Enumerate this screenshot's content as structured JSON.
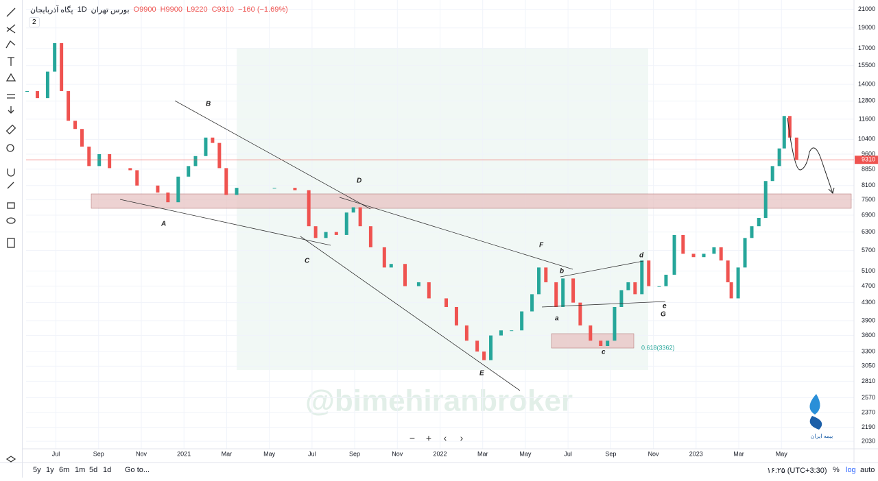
{
  "header": {
    "symbol": "پگاه آذربایجان",
    "interval": "1D",
    "exchange": "بورس تهران",
    "open": "O9900",
    "high": "H9900",
    "low": "L9220",
    "close": "C9310",
    "change": "−160 (−1.69%)",
    "badge": "2"
  },
  "chart_data": {
    "type": "candlestick",
    "log_scale": true,
    "grid": true,
    "up_color": "#26a69a",
    "down_color": "#ef5350",
    "x": [
      -1.35,
      -0.87,
      -0.39,
      -0.06,
      0.26,
      0.58,
      0.9,
      1.22,
      1.55,
      2.03,
      2.51,
      3.48,
      3.8,
      4.77,
      5.25,
      5.73,
      6.21,
      6.54,
      7.02,
      7.34,
      7.66,
      7.98,
      8.47,
      10.24,
      11.2,
      11.85,
      12.17,
      12.65,
      13.14,
      13.62,
      13.94,
      14.26,
      14.75,
      15.39,
      15.71,
      16.36,
      17.0,
      17.48,
      18.29,
      18.77,
      19.25,
      19.74,
      20.06,
      20.38,
      20.86,
      21.35,
      21.83,
      22.31,
      22.63,
      22.96,
      23.44,
      23.76,
      24.24,
      24.57,
      25.05,
      25.53,
      25.85,
      26.18,
      26.5,
      26.82,
      27.14,
      27.46,
      27.78,
      28.27,
      28.59,
      28.98,
      29.39,
      29.88,
      30.36,
      30.84,
      31.17,
      31.49,
      31.65,
      31.97,
      32.29,
      32.61,
      32.94,
      33.26,
      33.58,
      33.9,
      34.13,
      34.39,
      34.71
    ],
    "values": [
      13500,
      13000,
      15000,
      17500,
      13500,
      11500,
      11000,
      10000,
      9000,
      9600,
      8900,
      8800,
      8100,
      7800,
      7400,
      8500,
      9000,
      9500,
      10500,
      10200,
      8900,
      7700,
      8000,
      8000,
      7900,
      6500,
      6100,
      6300,
      6200,
      7000,
      7200,
      6500,
      5800,
      5200,
      5300,
      4700,
      4800,
      4400,
      4200,
      3800,
      3500,
      3300,
      3150,
      3600,
      3700,
      3700,
      4100,
      4500,
      5200,
      4800,
      4200,
      4900,
      4300,
      3800,
      3500,
      3400,
      3500,
      4200,
      4600,
      4800,
      4500,
      5400,
      4700,
      4700,
      5000,
      6200,
      5600,
      5500,
      5600,
      5800,
      5400,
      4800,
      4400,
      5200,
      6100,
      6500,
      6800,
      8300,
      9000,
      9900,
      11800,
      10500,
      9300
    ],
    "last_price": 9310,
    "xlim": [
      -1.4,
      37.4
    ],
    "ylim": [
      1950,
      22100
    ],
    "xticks": [
      {
        "value": 0,
        "label": "Jul"
      },
      {
        "value": 2,
        "label": "Sep"
      },
      {
        "value": 4,
        "label": "Nov"
      },
      {
        "value": 6,
        "label": "2021"
      },
      {
        "value": 8,
        "label": "Mar"
      },
      {
        "value": 10,
        "label": "May"
      },
      {
        "value": 12,
        "label": "Jul"
      },
      {
        "value": 14,
        "label": "Sep"
      },
      {
        "value": 16,
        "label": "Nov"
      },
      {
        "value": 18,
        "label": "2022"
      },
      {
        "value": 20,
        "label": "Mar"
      },
      {
        "value": 22,
        "label": "May"
      },
      {
        "value": 24,
        "label": "Jul"
      },
      {
        "value": 26,
        "label": "Sep"
      },
      {
        "value": 28,
        "label": "Nov"
      },
      {
        "value": 30,
        "label": "2023"
      },
      {
        "value": 32,
        "label": "Mar"
      },
      {
        "value": 34,
        "label": "May"
      }
    ],
    "yticks": [
      2030,
      2190,
      2370,
      2570,
      2810,
      3050,
      3300,
      3600,
      3900,
      4300,
      4700,
      5100,
      5700,
      6300,
      6900,
      7500,
      8100,
      8850,
      9600,
      10400,
      11600,
      12800,
      14000,
      15500,
      17000,
      19000,
      21000
    ]
  },
  "annotations": {
    "labels": [
      "B",
      "D",
      "A",
      "C",
      "F",
      "b",
      "d",
      "a",
      "e",
      "G",
      "c",
      "E"
    ],
    "fib": "0.618(3362)",
    "watermark": "@bimehiranbroker",
    "logo": "بیمه ایران"
  },
  "navigation": [
    "−",
    "+",
    "‹",
    "›"
  ],
  "footer": {
    "ranges": [
      "5y",
      "1y",
      "6m",
      "1m",
      "5d",
      "1d"
    ],
    "goto": "Go to...",
    "time": "۱۶:۲۵ (UTC+3:30)",
    "percent": "%",
    "log": "log",
    "auto": "auto"
  }
}
